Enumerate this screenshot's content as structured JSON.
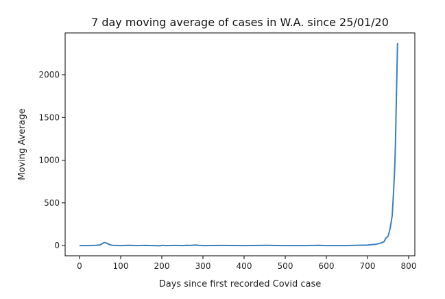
{
  "chart_data": {
    "type": "line",
    "title": "7 day moving average of cases in W.A. since 25/01/20",
    "xlabel": "Days since first recorded Covid case",
    "ylabel": "Moving Average",
    "xlim": [
      -35,
      815
    ],
    "ylim": [
      -120,
      2490
    ],
    "xticks": [
      0,
      100,
      200,
      300,
      400,
      500,
      600,
      700,
      800
    ],
    "yticks": [
      0,
      500,
      1000,
      1500,
      2000
    ],
    "grid": false,
    "legend": "none",
    "line_color": "#3a7fbf",
    "series": [
      {
        "x": [
          0,
          20,
          40,
          50,
          55,
          60,
          65,
          70,
          75,
          80,
          90,
          100,
          120,
          140,
          160,
          180,
          195,
          200,
          210,
          230,
          250,
          260,
          270,
          280,
          300,
          350,
          400,
          450,
          500,
          550,
          580,
          600,
          650,
          700,
          710,
          720,
          730,
          740,
          745,
          750,
          755,
          760,
          763,
          766,
          768,
          770,
          773
        ],
        "y": [
          0,
          0,
          2,
          8,
          22,
          35,
          30,
          18,
          8,
          3,
          1,
          0,
          2,
          0,
          1,
          0,
          -3,
          2,
          0,
          1,
          0,
          3,
          1,
          5,
          0,
          1,
          0,
          2,
          0,
          0,
          2,
          0,
          0,
          5,
          10,
          15,
          25,
          45,
          90,
          110,
          200,
          350,
          600,
          900,
          1200,
          1700,
          2370
        ]
      }
    ]
  }
}
